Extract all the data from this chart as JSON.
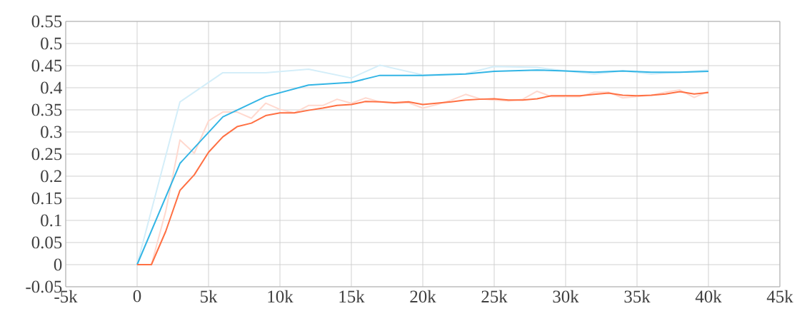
{
  "chart_data": {
    "type": "line",
    "grid": true,
    "legend": false,
    "marker": "none",
    "line_style": "solid",
    "xlim": [
      -5000,
      45000
    ],
    "ylim": [
      -0.05,
      0.55
    ],
    "xticks": [
      {
        "value": -5000,
        "label": "-5k"
      },
      0,
      {
        "value": 5000,
        "label": "5k"
      },
      {
        "value": 10000,
        "label": "10k"
      },
      {
        "value": 15000,
        "label": "15k"
      },
      {
        "value": 20000,
        "label": "20k"
      },
      {
        "value": 25000,
        "label": "25k"
      },
      {
        "value": 30000,
        "label": "30k"
      },
      {
        "value": 35000,
        "label": "35k"
      },
      {
        "value": 40000,
        "label": "40k"
      },
      {
        "value": 45000,
        "label": "45k"
      }
    ],
    "yticks": [
      -0.05,
      0,
      0.05,
      0.1,
      0.15,
      0.2,
      0.25,
      0.3,
      0.35,
      0.4,
      0.45,
      0.5,
      0.55
    ],
    "series": [
      {
        "color": "#d4eef9",
        "x": [
          0,
          3000,
          6000,
          9000,
          12000,
          15000,
          17000,
          20000,
          23000,
          25000,
          28000,
          30000,
          32000,
          34000,
          36000,
          38000,
          40000
        ],
        "values": [
          0,
          0.368,
          0.434,
          0.434,
          0.442,
          0.422,
          0.451,
          0.429,
          0.432,
          0.448,
          0.446,
          0.438,
          0.431,
          0.438,
          0.431,
          0.435,
          0.44
        ]
      },
      {
        "color": "#ffd9cf",
        "x": [
          0,
          1000,
          2000,
          3000,
          4000,
          5000,
          6000,
          7000,
          8000,
          9000,
          10000,
          11000,
          12000,
          13000,
          14000,
          15000,
          16000,
          17000,
          18000,
          19000,
          20000,
          21000,
          22000,
          23000,
          24000,
          25000,
          26000,
          27000,
          28000,
          29000,
          30000,
          31000,
          32000,
          33000,
          34000,
          35000,
          36000,
          37000,
          38000,
          39000,
          40000
        ],
        "values": [
          0,
          0,
          0.12,
          0.282,
          0.252,
          0.325,
          0.345,
          0.345,
          0.331,
          0.365,
          0.351,
          0.343,
          0.36,
          0.36,
          0.374,
          0.365,
          0.377,
          0.368,
          0.365,
          0.366,
          0.354,
          0.362,
          0.372,
          0.385,
          0.375,
          0.372,
          0.37,
          0.374,
          0.392,
          0.38,
          0.38,
          0.38,
          0.39,
          0.39,
          0.377,
          0.38,
          0.383,
          0.39,
          0.395,
          0.378,
          0.392
        ]
      },
      {
        "color": "#33b5e5",
        "x": [
          0,
          3000,
          6000,
          9000,
          12000,
          15000,
          17000,
          20000,
          23000,
          25000,
          28000,
          30000,
          32000,
          34000,
          36000,
          38000,
          40000
        ],
        "values": [
          0,
          0.229,
          0.334,
          0.38,
          0.406,
          0.412,
          0.428,
          0.428,
          0.431,
          0.437,
          0.44,
          0.438,
          0.435,
          0.438,
          0.435,
          0.435,
          0.437
        ]
      },
      {
        "color": "#ff7043",
        "x": [
          0,
          1000,
          2000,
          3000,
          4000,
          5000,
          6000,
          7000,
          8000,
          9000,
          10000,
          11000,
          12000,
          13000,
          14000,
          15000,
          16000,
          17000,
          18000,
          19000,
          20000,
          21000,
          22000,
          23000,
          24000,
          25000,
          26000,
          27000,
          28000,
          29000,
          30000,
          31000,
          32000,
          33000,
          34000,
          35000,
          36000,
          37000,
          38000,
          39000,
          40000
        ],
        "values": [
          0,
          0,
          0.075,
          0.168,
          0.203,
          0.254,
          0.289,
          0.312,
          0.32,
          0.337,
          0.343,
          0.343,
          0.349,
          0.354,
          0.36,
          0.362,
          0.369,
          0.368,
          0.366,
          0.368,
          0.362,
          0.365,
          0.368,
          0.372,
          0.374,
          0.375,
          0.372,
          0.372,
          0.375,
          0.382,
          0.382,
          0.382,
          0.385,
          0.388,
          0.383,
          0.382,
          0.383,
          0.386,
          0.391,
          0.386,
          0.389
        ]
      }
    ]
  }
}
